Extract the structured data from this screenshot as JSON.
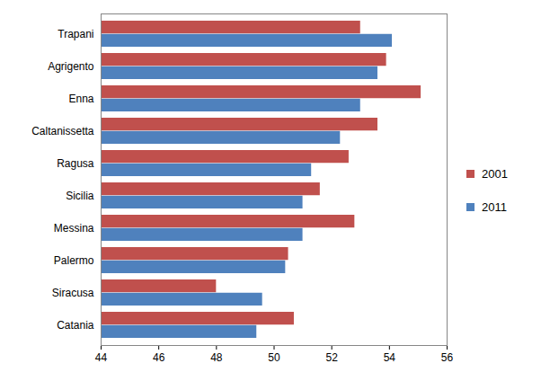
{
  "chart_data": {
    "type": "bar",
    "orientation": "horizontal",
    "categories": [
      "Trapani",
      "Agrigento",
      "Enna",
      "Caltanissetta",
      "Ragusa",
      "Sicilia",
      "Messina",
      "Palermo",
      "Siracusa",
      "Catania"
    ],
    "series": [
      {
        "name": "2001",
        "color": "#c0504d",
        "values": [
          53.0,
          53.9,
          55.1,
          53.6,
          52.6,
          51.6,
          52.8,
          50.5,
          48.0,
          50.7
        ]
      },
      {
        "name": "2011",
        "color": "#4f81bd",
        "values": [
          54.1,
          53.6,
          53.0,
          52.3,
          51.3,
          51.0,
          51.0,
          50.4,
          49.6,
          49.4
        ]
      }
    ],
    "xlim": [
      44,
      56
    ],
    "xticks": [
      44,
      46,
      48,
      50,
      52,
      54,
      56
    ],
    "grid": false,
    "legend": "right"
  }
}
